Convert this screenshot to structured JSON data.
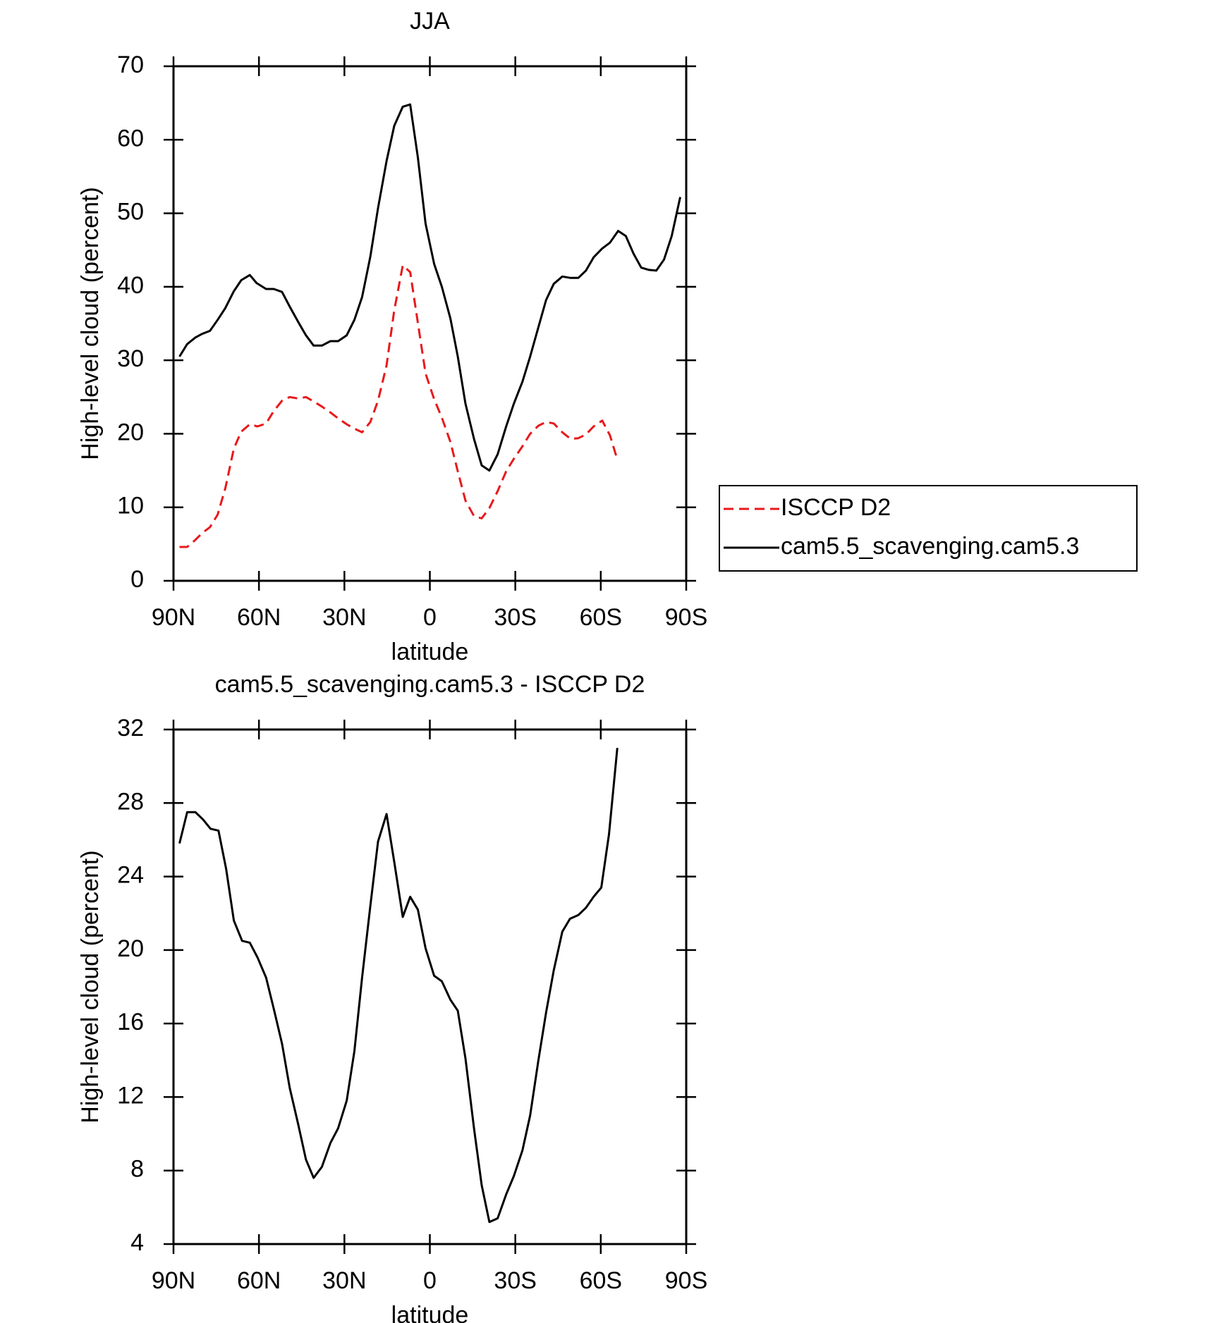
{
  "chart_data": [
    {
      "type": "line",
      "title": "JJA",
      "xlabel": "latitude",
      "ylabel": "High-level cloud (percent)",
      "xlim": [
        90,
        -90
      ],
      "xticks": [
        {
          "value": 90,
          "label": "90N"
        },
        {
          "value": 60,
          "label": "60N"
        },
        {
          "value": 30,
          "label": "30N"
        },
        0,
        {
          "value": -30,
          "label": "30S"
        },
        {
          "value": -60,
          "label": "60S"
        },
        {
          "value": -90,
          "label": "90S"
        }
      ],
      "ylim": [
        0,
        70
      ],
      "yticks": [
        0,
        10,
        20,
        30,
        40,
        50,
        60,
        70
      ],
      "legend": "outside-right",
      "series": [
        {
          "name": "ISCCP D2",
          "color": "#e8191b",
          "linestyle": "dashed",
          "x": [
            87.9,
            85.2,
            82.5,
            79.9,
            77.2,
            74.5,
            71.8,
            68.8,
            66.2,
            63.2,
            60.5,
            57.5,
            54.8,
            51.9,
            49.2,
            46.2,
            43.5,
            40.8,
            37.9,
            34.9,
            32.2,
            29.2,
            26.5,
            23.8,
            20.9,
            18.2,
            15.2,
            12.5,
            9.5,
            6.9,
            4.2,
            1.5,
            -1.5,
            -4.2,
            -7.2,
            -9.8,
            -12.5,
            -15.5,
            -18.2,
            -20.9,
            -23.8,
            -26.8,
            -29.5,
            -32.5,
            -35.2,
            -38.1,
            -40.8,
            -43.5,
            -46.5,
            -49.4,
            -52.1,
            -54.8,
            -57.5,
            -60.5,
            -63.2,
            -65.8
          ],
          "values": [
            4.6,
            4.6,
            5.5,
            6.5,
            7.3,
            9.0,
            12.6,
            18.0,
            20.3,
            21.3,
            21.0,
            21.4,
            23.1,
            24.5,
            25.0,
            24.8,
            25.0,
            24.4,
            23.7,
            22.9,
            22.1,
            21.3,
            20.7,
            20.2,
            21.6,
            24.5,
            29.3,
            36.8,
            42.9,
            42.0,
            35.1,
            28.2,
            24.7,
            22.2,
            18.9,
            14.9,
            10.9,
            8.8,
            8.5,
            9.9,
            12.2,
            14.9,
            16.6,
            18.3,
            20.0,
            21.1,
            21.6,
            21.4,
            20.2,
            19.3,
            19.4,
            19.9,
            21.0,
            21.8,
            19.8,
            16.5
          ]
        },
        {
          "name": "cam5.5_scavenging.cam5.3",
          "color": "#000000",
          "linestyle": "solid",
          "x": [
            87.9,
            85.2,
            82.3,
            79.9,
            77.2,
            74.5,
            71.8,
            68.8,
            66.2,
            63.2,
            60.8,
            57.5,
            54.8,
            51.9,
            49.2,
            46.2,
            43.5,
            40.8,
            37.9,
            34.9,
            32.2,
            29.2,
            26.5,
            23.8,
            20.9,
            18.2,
            15.2,
            12.5,
            9.5,
            6.9,
            4.2,
            1.5,
            -1.5,
            -4.2,
            -7.2,
            -9.8,
            -12.5,
            -15.5,
            -18.2,
            -20.9,
            -23.8,
            -26.8,
            -29.5,
            -32.5,
            -35.2,
            -38.1,
            -40.8,
            -43.5,
            -46.5,
            -49.4,
            -52.1,
            -54.8,
            -57.5,
            -60.5,
            -63.2,
            -66.1,
            -68.8,
            -71.5,
            -74.2,
            -76.9,
            -79.5,
            -82.2,
            -84.9,
            -87.9
          ],
          "values": [
            30.5,
            32.2,
            33.1,
            33.6,
            34.0,
            35.5,
            37.1,
            39.4,
            40.9,
            41.6,
            40.5,
            39.7,
            39.7,
            39.3,
            37.3,
            35.2,
            33.4,
            32.0,
            32.0,
            32.6,
            32.6,
            33.4,
            35.5,
            38.6,
            44.1,
            50.7,
            57.1,
            61.9,
            64.5,
            64.8,
            57.6,
            48.6,
            43.1,
            40.0,
            35.7,
            30.5,
            24.1,
            19.3,
            15.7,
            15.0,
            17.2,
            21.0,
            24.1,
            27.1,
            30.5,
            34.5,
            38.2,
            40.4,
            41.4,
            41.2,
            41.2,
            42.2,
            44.0,
            45.2,
            46.0,
            47.6,
            46.9,
            44.5,
            42.6,
            42.3,
            42.2,
            43.7,
            46.9,
            52.2
          ]
        }
      ]
    },
    {
      "type": "line",
      "title": "cam5.5_scavenging.cam5.3 - ISCCP D2",
      "xlabel": "latitude",
      "ylabel": "High-level cloud (percent)",
      "xlim": [
        90,
        -90
      ],
      "xticks": [
        {
          "value": 90,
          "label": "90N"
        },
        {
          "value": 60,
          "label": "60N"
        },
        {
          "value": 30,
          "label": "30N"
        },
        0,
        {
          "value": -30,
          "label": "30S"
        },
        {
          "value": -60,
          "label": "60S"
        },
        {
          "value": -90,
          "label": "90S"
        }
      ],
      "ylim": [
        4,
        32
      ],
      "yticks": [
        4,
        8,
        12,
        16,
        20,
        24,
        28,
        32
      ],
      "series": [
        {
          "color": "#000000",
          "linestyle": "solid",
          "x": [
            87.9,
            85.2,
            82.3,
            79.6,
            77.0,
            74.2,
            71.5,
            68.8,
            65.9,
            63.2,
            60.5,
            57.5,
            54.8,
            51.9,
            49.2,
            46.2,
            43.5,
            40.8,
            37.9,
            34.9,
            32.2,
            29.2,
            26.5,
            23.8,
            20.9,
            18.2,
            15.2,
            12.5,
            9.5,
            6.9,
            4.2,
            1.5,
            -1.5,
            -4.2,
            -7.2,
            -9.8,
            -12.5,
            -15.5,
            -18.2,
            -20.9,
            -23.8,
            -26.8,
            -29.5,
            -32.5,
            -35.2,
            -38.1,
            -40.8,
            -43.5,
            -46.5,
            -49.2,
            -52.1,
            -54.8,
            -57.5,
            -60.2,
            -62.9,
            -65.8
          ],
          "values": [
            25.8,
            27.5,
            27.5,
            27.1,
            26.6,
            26.5,
            24.4,
            21.6,
            20.5,
            20.4,
            19.6,
            18.5,
            16.8,
            14.9,
            12.5,
            10.5,
            8.6,
            7.6,
            8.2,
            9.5,
            10.3,
            11.8,
            14.5,
            18.5,
            22.4,
            25.9,
            27.4,
            24.8,
            21.8,
            22.9,
            22.2,
            20.1,
            18.6,
            18.3,
            17.3,
            16.7,
            14.1,
            10.3,
            7.2,
            5.2,
            5.4,
            6.7,
            7.7,
            9.1,
            11.0,
            14.0,
            16.6,
            18.9,
            21.0,
            21.7,
            21.9,
            22.3,
            22.9,
            23.4,
            26.3,
            31.0
          ]
        }
      ]
    }
  ]
}
